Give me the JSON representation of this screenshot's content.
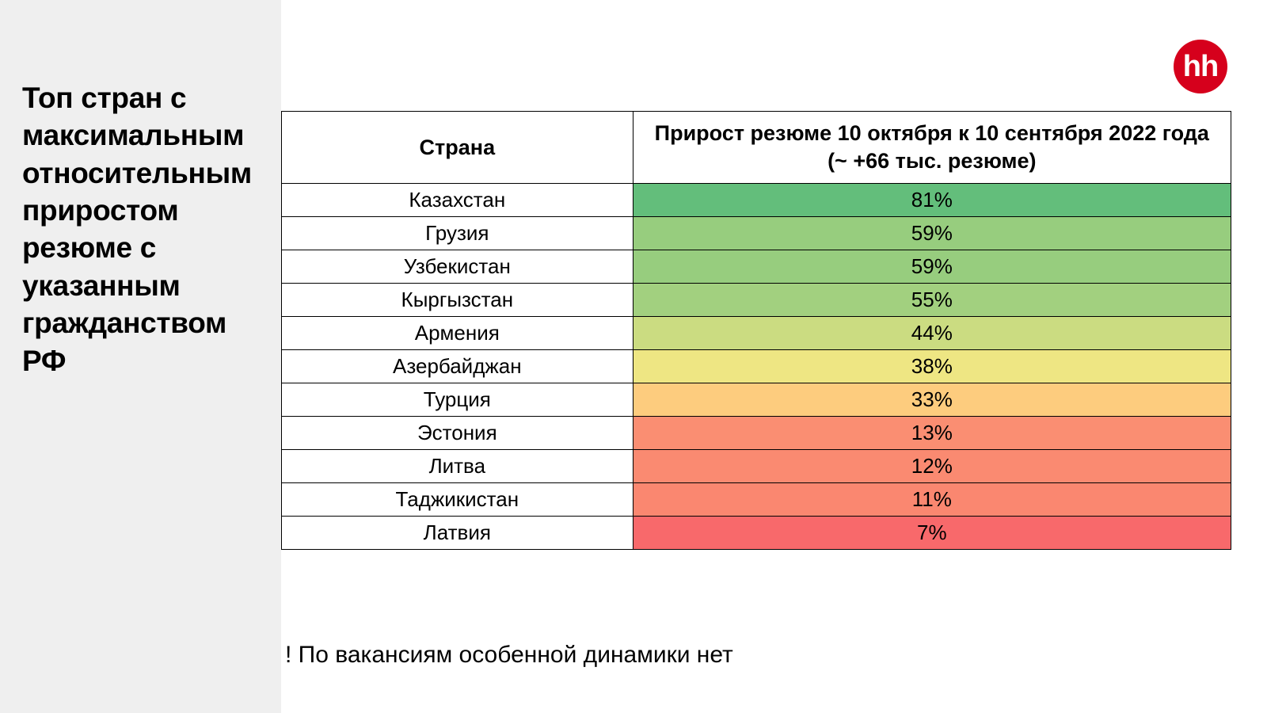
{
  "title": "Топ стран с максимальным относительным приростом резюме с указанным гражданством РФ",
  "logo_text": "hh",
  "logo_bg": "#d6001c",
  "logo_fg": "#ffffff",
  "table": {
    "type": "table",
    "columns": [
      "Страна",
      "Прирост резюме 10 октября к 10 сентября 2022 года\n(~ +66 тыс. резюме)"
    ],
    "col_widths_pct": [
      37,
      63
    ],
    "border_color": "#000000",
    "header_bg": "#ffffff",
    "header_font_weight": 700,
    "header_fontsize": 27,
    "body_fontsize": 26,
    "text_color": "#000000",
    "country_cell_bg": "#ffffff",
    "rows": [
      {
        "country": "Казахстан",
        "value": "81%",
        "value_bg": "#63be7b"
      },
      {
        "country": "Грузия",
        "value": "59%",
        "value_bg": "#97cd7e"
      },
      {
        "country": "Узбекистан",
        "value": "59%",
        "value_bg": "#97cd7e"
      },
      {
        "country": "Кыргызстан",
        "value": "55%",
        "value_bg": "#a2d07f"
      },
      {
        "country": "Армения",
        "value": "44%",
        "value_bg": "#cbdc81"
      },
      {
        "country": "Азербайджан",
        "value": "38%",
        "value_bg": "#eee683"
      },
      {
        "country": "Турция",
        "value": "33%",
        "value_bg": "#fdcc7e"
      },
      {
        "country": "Эстония",
        "value": "13%",
        "value_bg": "#fa8e72"
      },
      {
        "country": "Литва",
        "value": "12%",
        "value_bg": "#fa8a71"
      },
      {
        "country": "Таджикистан",
        "value": "11%",
        "value_bg": "#fa8770"
      },
      {
        "country": "Латвия",
        "value": "7%",
        "value_bg": "#f8696b"
      }
    ]
  },
  "note": "! По вакансиям особенной динамики нет",
  "background_color": "#ffffff",
  "sidebar_bg": "#efefef"
}
